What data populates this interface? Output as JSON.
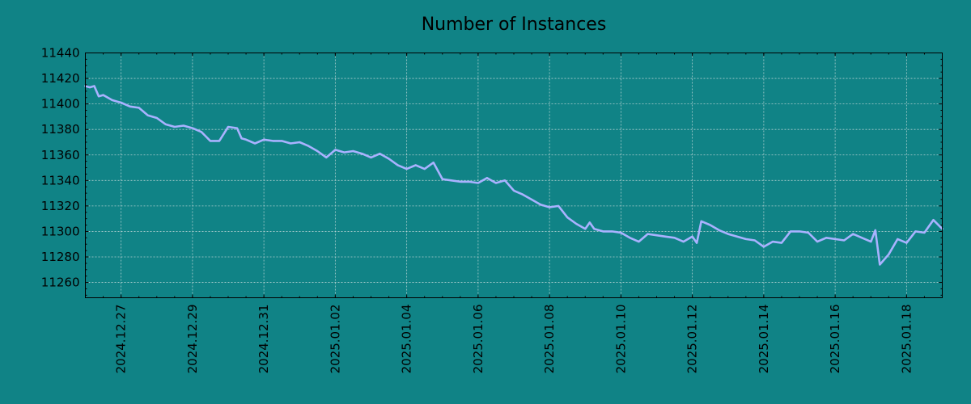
{
  "chart_data": {
    "type": "line",
    "title": "Number of Instances",
    "xlabel": "",
    "ylabel": "",
    "x_range": [
      "2024-12-26",
      "2025-01-19"
    ],
    "ylim": [
      11248,
      11440
    ],
    "grid": true,
    "legend": "none",
    "colors": {
      "background": "#108386",
      "line": "#a9b2ff",
      "grid": "#c9dcdc"
    },
    "x_ticks": [
      {
        "date": "2024-12-27",
        "label": "2024.12.27"
      },
      {
        "date": "2024-12-29",
        "label": "2024.12.29"
      },
      {
        "date": "2024-12-31",
        "label": "2024.12.31"
      },
      {
        "date": "2025-01-02",
        "label": "2025.01.02"
      },
      {
        "date": "2025-01-04",
        "label": "2025.01.04"
      },
      {
        "date": "2025-01-06",
        "label": "2025.01.06"
      },
      {
        "date": "2025-01-08",
        "label": "2025.01.08"
      },
      {
        "date": "2025-01-10",
        "label": "2025.01.10"
      },
      {
        "date": "2025-01-12",
        "label": "2025.01.12"
      },
      {
        "date": "2025-01-14",
        "label": "2025.01.14"
      },
      {
        "date": "2025-01-16",
        "label": "2025.01.16"
      },
      {
        "date": "2025-01-18",
        "label": "2025.01.18"
      }
    ],
    "y_ticks": [
      {
        "value": 11260,
        "label": "11260"
      },
      {
        "value": 11280,
        "label": "11280"
      },
      {
        "value": 11300,
        "label": "11300"
      },
      {
        "value": 11320,
        "label": "11320"
      },
      {
        "value": 11340,
        "label": "11340"
      },
      {
        "value": 11360,
        "label": "11360"
      },
      {
        "value": 11380,
        "label": "11380"
      },
      {
        "value": 11400,
        "label": "11400"
      },
      {
        "value": 11420,
        "label": "11420"
      },
      {
        "value": 11440,
        "label": "11440"
      }
    ],
    "series": [
      {
        "x": [
          "2024-12-26T00:00",
          "2024-12-26T03:00",
          "2024-12-26T06:00",
          "2024-12-26T09:00",
          "2024-12-26T12:00",
          "2024-12-26T15:00",
          "2024-12-26T18:00",
          "2024-12-26T21:00",
          "2024-12-27T00:00",
          "2024-12-27T06:00",
          "2024-12-27T12:00",
          "2024-12-27T18:00",
          "2024-12-28T00:00",
          "2024-12-28T06:00",
          "2024-12-28T12:00",
          "2024-12-28T18:00",
          "2024-12-29T00:00",
          "2024-12-29T06:00",
          "2024-12-29T12:00",
          "2024-12-29T18:00",
          "2024-12-30T00:00",
          "2024-12-30T06:00",
          "2024-12-30T09:00",
          "2024-12-30T12:00",
          "2024-12-30T18:00",
          "2024-12-31T00:00",
          "2024-12-31T06:00",
          "2024-12-31T12:00",
          "2024-12-31T18:00",
          "2025-01-01T00:00",
          "2025-01-01T06:00",
          "2025-01-01T12:00",
          "2025-01-01T18:00",
          "2025-01-02T00:00",
          "2025-01-02T06:00",
          "2025-01-02T12:00",
          "2025-01-02T18:00",
          "2025-01-03T00:00",
          "2025-01-03T06:00",
          "2025-01-03T12:00",
          "2025-01-03T18:00",
          "2025-01-04T00:00",
          "2025-01-04T06:00",
          "2025-01-04T12:00",
          "2025-01-04T18:00",
          "2025-01-05T00:00",
          "2025-01-05T06:00",
          "2025-01-05T12:00",
          "2025-01-05T18:00",
          "2025-01-06T00:00",
          "2025-01-06T06:00",
          "2025-01-06T12:00",
          "2025-01-06T18:00",
          "2025-01-07T00:00",
          "2025-01-07T06:00",
          "2025-01-07T12:00",
          "2025-01-07T18:00",
          "2025-01-08T00:00",
          "2025-01-08T06:00",
          "2025-01-08T12:00",
          "2025-01-08T18:00",
          "2025-01-09T00:00",
          "2025-01-09T03:00",
          "2025-01-09T06:00",
          "2025-01-09T12:00",
          "2025-01-09T18:00",
          "2025-01-10T00:00",
          "2025-01-10T06:00",
          "2025-01-10T12:00",
          "2025-01-10T18:00",
          "2025-01-11T00:00",
          "2025-01-11T06:00",
          "2025-01-11T12:00",
          "2025-01-11T18:00",
          "2025-01-12T00:00",
          "2025-01-12T03:00",
          "2025-01-12T06:00",
          "2025-01-12T12:00",
          "2025-01-12T18:00",
          "2025-01-13T00:00",
          "2025-01-13T06:00",
          "2025-01-13T12:00",
          "2025-01-13T18:00",
          "2025-01-14T00:00",
          "2025-01-14T06:00",
          "2025-01-14T12:00",
          "2025-01-14T18:00",
          "2025-01-15T00:00",
          "2025-01-15T06:00",
          "2025-01-15T12:00",
          "2025-01-15T18:00",
          "2025-01-16T00:00",
          "2025-01-16T06:00",
          "2025-01-16T12:00",
          "2025-01-16T18:00",
          "2025-01-17T00:00",
          "2025-01-17T03:00",
          "2025-01-17T06:00",
          "2025-01-17T12:00",
          "2025-01-17T18:00",
          "2025-01-18T00:00",
          "2025-01-18T06:00",
          "2025-01-18T12:00",
          "2025-01-18T18:00",
          "2025-01-19T00:00"
        ],
        "values": [
          11414,
          11413,
          11414,
          11406,
          11407,
          11405,
          11403,
          11402,
          11401,
          11398,
          11397,
          11391,
          11389,
          11384,
          11382,
          11383,
          11381,
          11378,
          11371,
          11371,
          11382,
          11381,
          11373,
          11372,
          11369,
          11372,
          11371,
          11371,
          11369,
          11370,
          11367,
          11363,
          11358,
          11364,
          11362,
          11363,
          11361,
          11358,
          11361,
          11357,
          11352,
          11349,
          11352,
          11349,
          11354,
          11341,
          11340,
          11339,
          11339,
          11338,
          11342,
          11338,
          11340,
          11332,
          11329,
          11325,
          11321,
          11319,
          11320,
          11311,
          11306,
          11302,
          11307,
          11302,
          11300,
          11300,
          11299,
          11295,
          11292,
          11298,
          11297,
          11296,
          11295,
          11292,
          11296,
          11291,
          11308,
          11305,
          11301,
          11298,
          11296,
          11294,
          11293,
          11288,
          11292,
          11291,
          11300,
          11300,
          11299,
          11292,
          11295,
          11294,
          11293,
          11298,
          11295,
          11292,
          11301,
          11274,
          11282,
          11294,
          11291,
          11300,
          11299,
          11309,
          11302
        ]
      }
    ]
  }
}
